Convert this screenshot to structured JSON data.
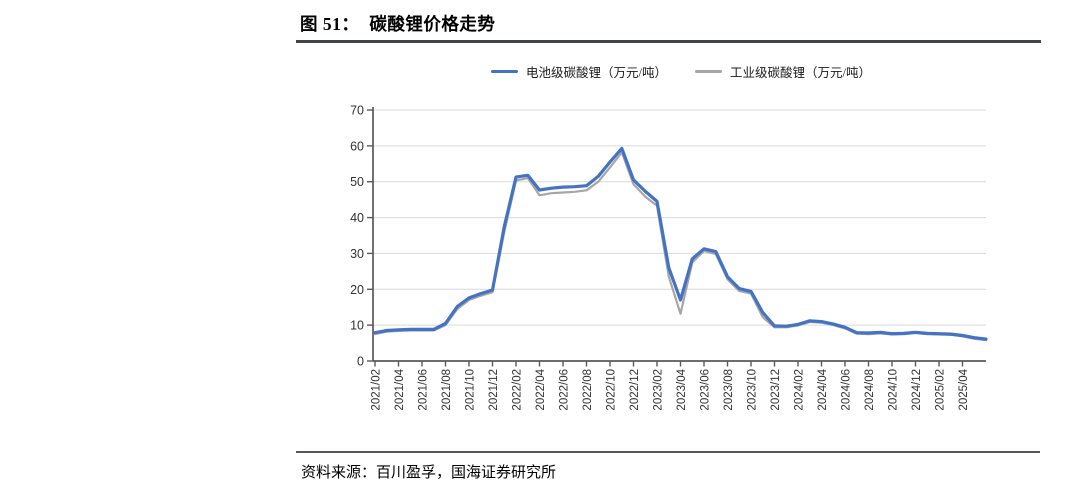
{
  "figure": {
    "label_prefix": "图 51：",
    "title": "碳酸锂价格走势",
    "source": "资料来源：百川盈孚，国海证券研究所"
  },
  "colors": {
    "series_battery": "#4472c4",
    "series_industrial": "#a6a6a6",
    "grid": "#d9d9d9",
    "axis": "#595959",
    "tick_text": "#333333",
    "title_rule": "#43454e",
    "source_rule": "#55565c"
  },
  "chart_data": {
    "type": "line",
    "title": "碳酸锂价格走势",
    "xlabel": "",
    "ylabel": "万元/吨",
    "ylim": [
      0,
      70
    ],
    "y_ticks": [
      0,
      10,
      20,
      30,
      40,
      50,
      60,
      70
    ],
    "grid": "horizontal",
    "legend_position": "top-center",
    "x": [
      "2021/02",
      "2021/03",
      "2021/04",
      "2021/05",
      "2021/06",
      "2021/07",
      "2021/08",
      "2021/09",
      "2021/10",
      "2021/11",
      "2021/12",
      "2022/01",
      "2022/02",
      "2022/03",
      "2022/04",
      "2022/05",
      "2022/06",
      "2022/07",
      "2022/08",
      "2022/09",
      "2022/10",
      "2022/11",
      "2022/12",
      "2023/01",
      "2023/02",
      "2023/03",
      "2023/04",
      "2023/05",
      "2023/06",
      "2023/07",
      "2023/08",
      "2023/09",
      "2023/10",
      "2023/11",
      "2023/12",
      "2024/01",
      "2024/02",
      "2024/03",
      "2024/04",
      "2024/05",
      "2024/06",
      "2024/07",
      "2024/08",
      "2024/09",
      "2024/10",
      "2024/11",
      "2024/12",
      "2025/01",
      "2025/02",
      "2025/03",
      "2025/04",
      "2025/05",
      "2025/06"
    ],
    "x_tick_labels": [
      "2021/02",
      "2021/04",
      "2021/06",
      "2021/08",
      "2021/10",
      "2021/12",
      "2022/02",
      "2022/04",
      "2022/06",
      "2022/08",
      "2022/10",
      "2022/12",
      "2023/02",
      "2023/04",
      "2023/06",
      "2023/08",
      "2023/10",
      "2023/12",
      "2024/02",
      "2024/04",
      "2024/06",
      "2024/08",
      "2024/10",
      "2024/12",
      "2025/02",
      "2025/04"
    ],
    "series": [
      {
        "name": "电池级碳酸锂（万元/吨）",
        "color": "#4472c4",
        "values": [
          7.9,
          8.5,
          8.7,
          8.8,
          8.8,
          8.8,
          10.5,
          15.2,
          17.6,
          18.8,
          19.8,
          37.5,
          51.3,
          51.8,
          47.7,
          48.2,
          48.5,
          48.6,
          48.9,
          51.5,
          55.5,
          59.3,
          50.5,
          47.3,
          44.5,
          26.0,
          17.0,
          28.5,
          31.3,
          30.5,
          23.5,
          20.2,
          19.4,
          13.5,
          9.8,
          9.7,
          10.2,
          11.2,
          11.0,
          10.3,
          9.4,
          7.9,
          7.8,
          8.0,
          7.6,
          7.7,
          8.0,
          7.7,
          7.6,
          7.5,
          7.1,
          6.5,
          6.1
        ]
      },
      {
        "name": "工业级碳酸锂（万元/吨）",
        "color": "#a6a6a6",
        "values": [
          7.5,
          8.2,
          8.4,
          8.5,
          8.5,
          8.5,
          10.0,
          14.5,
          17.0,
          18.2,
          19.2,
          36.0,
          50.3,
          51.0,
          46.2,
          46.8,
          47.0,
          47.2,
          47.6,
          50.0,
          54.0,
          58.2,
          49.3,
          45.8,
          43.3,
          23.5,
          13.2,
          27.5,
          30.7,
          29.8,
          22.8,
          19.5,
          18.8,
          12.2,
          9.4,
          9.4,
          9.9,
          10.9,
          10.7,
          10.0,
          9.1,
          7.6,
          7.5,
          7.7,
          7.4,
          7.5,
          7.8,
          7.5,
          7.4,
          7.3,
          6.9,
          6.2,
          5.8
        ]
      }
    ]
  }
}
